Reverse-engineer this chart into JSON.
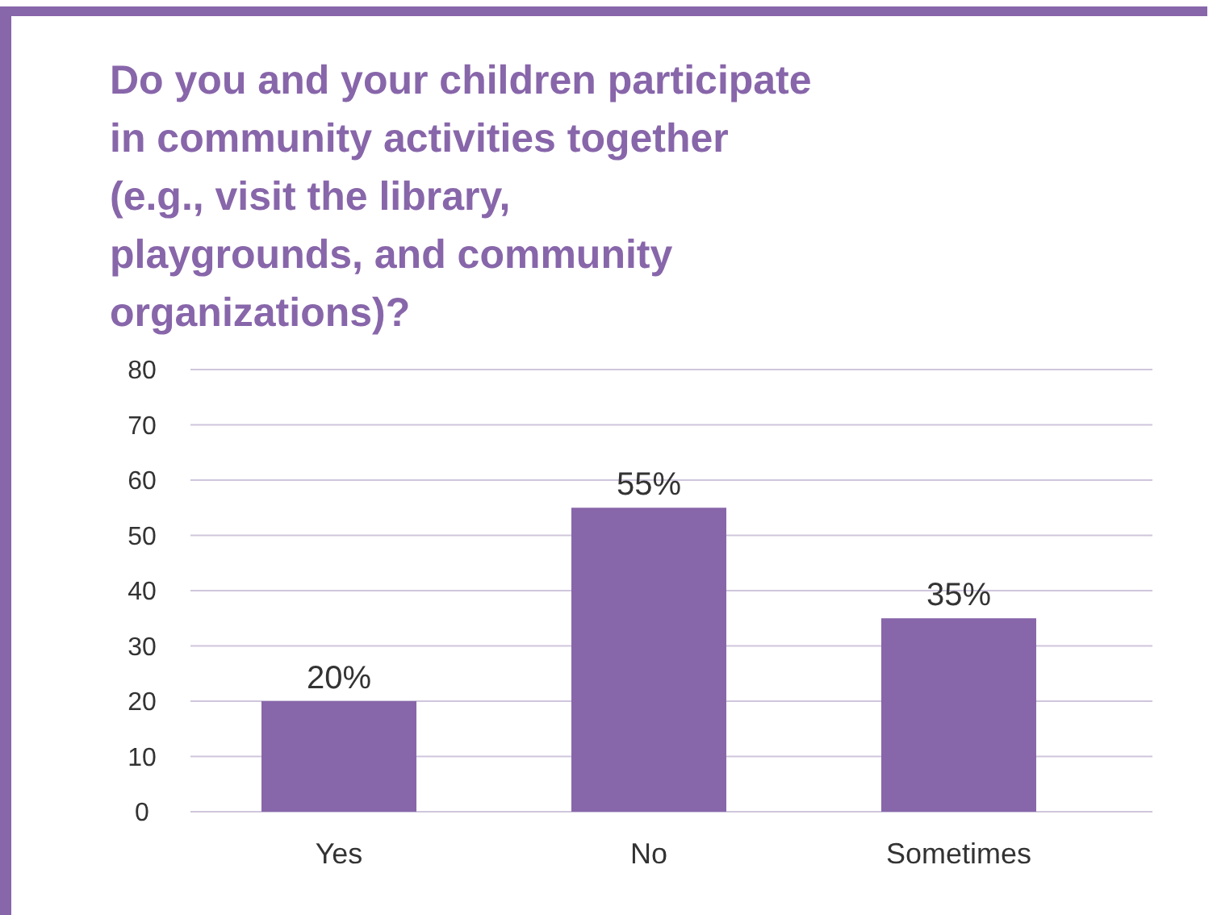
{
  "chart_data": {
    "type": "bar",
    "title": "Do you and your children participate in community activities together (e.g., visit the library, playgrounds, and community organizations)?",
    "categories": [
      "Yes",
      "No",
      "Sometimes"
    ],
    "values": [
      20,
      55,
      35
    ],
    "value_labels": [
      "20%",
      "55%",
      "35%"
    ],
    "color": "#8866aa",
    "ylim": [
      0,
      80
    ],
    "yticks": [
      0,
      10,
      20,
      30,
      40,
      50,
      60,
      70,
      80
    ],
    "grid": "y"
  }
}
